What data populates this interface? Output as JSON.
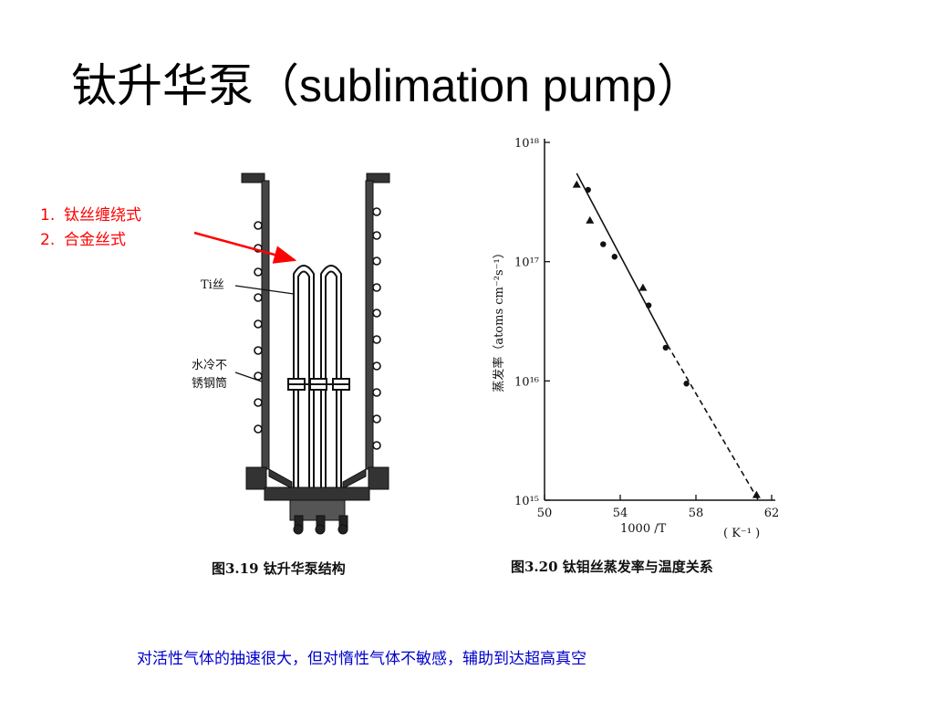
{
  "title": "钛升华泵（sublimation pump）",
  "list": [
    {
      "num": "1.",
      "text": "钛丝缠绕式"
    },
    {
      "num": "2.",
      "text": "合金丝式"
    }
  ],
  "fig_left": {
    "label_ti": "Ti丝",
    "label_cool_1": "水冷不",
    "label_cool_2": "锈钢筒",
    "caption": "图3.19   钛升华泵结构"
  },
  "chart_data": {
    "type": "scatter",
    "xlabel": "1000 /T",
    "xunit": "( K⁻¹ )",
    "ylabel": "蒸发率（atoms cm⁻²s⁻¹）",
    "xlim": [
      50,
      62
    ],
    "x_ticks": [
      "50",
      "54",
      "58",
      "62"
    ],
    "y_scale": "log",
    "ylim": [
      1000000000000000.0,
      1e+18
    ],
    "y_ticks": [
      "10¹⁵",
      "10¹⁶",
      "10¹⁷",
      "10¹⁸"
    ],
    "series": [
      {
        "marker": "triangle",
        "points": [
          [
            51.7,
            4.4e+17
          ],
          [
            52.4,
            2.2e+17
          ],
          [
            55.2,
            6e+16
          ],
          [
            61.2,
            1100000000000000.0
          ]
        ]
      },
      {
        "marker": "circle",
        "points": [
          [
            52.3,
            4e+17
          ],
          [
            53.1,
            1.4e+17
          ],
          [
            53.7,
            1.1e+17
          ],
          [
            55.5,
            4.3e+16
          ],
          [
            56.4,
            1.9e+16
          ],
          [
            57.5,
            9500000000000000.0
          ]
        ]
      }
    ],
    "fit_line": {
      "solid": [
        [
          51.7,
          5.5e+17
        ],
        [
          56.5,
          2e+16
        ]
      ],
      "dashed": [
        [
          56.5,
          2e+16
        ],
        [
          61.3,
          1000000000000000.0
        ]
      ]
    },
    "caption": "图3.20   钛钼丝蒸发率与温度关系"
  },
  "bottom_note": "对活性气体的抽速很大，但对惰性气体不敏感，辅助到达超高真空"
}
